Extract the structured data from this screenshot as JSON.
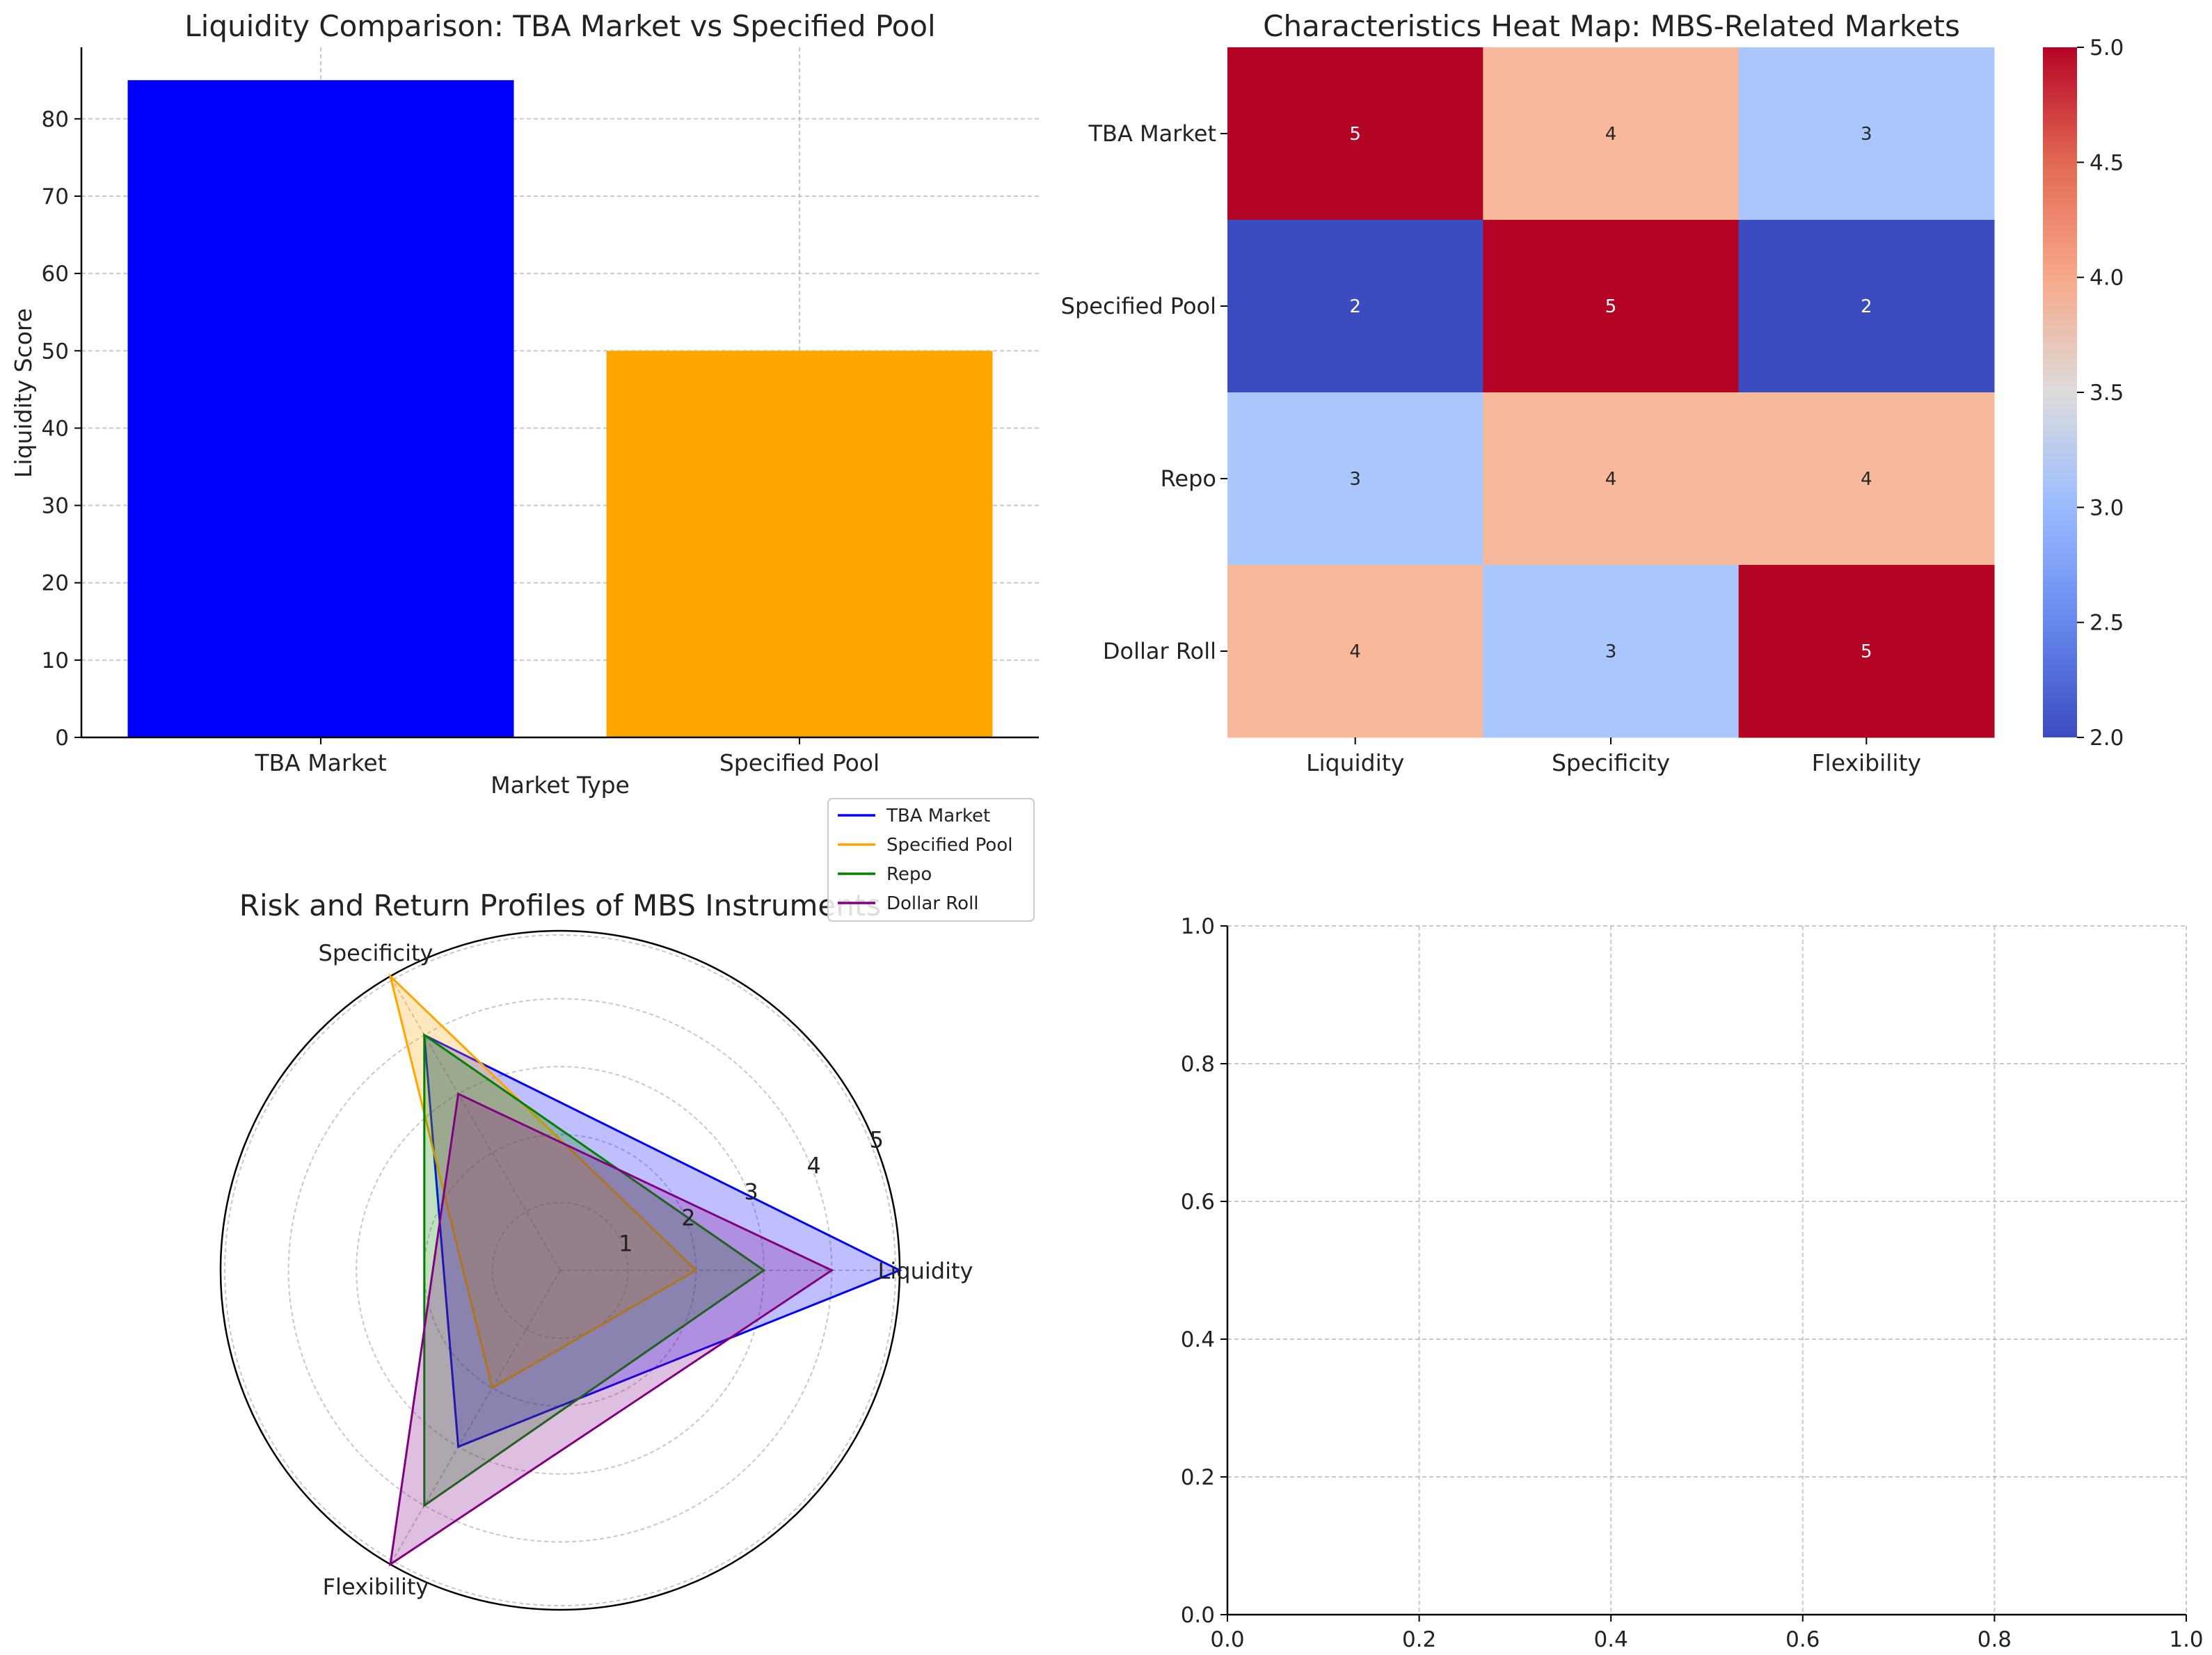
{
  "chart_data": [
    {
      "type": "bar",
      "title": "Liquidity Comparison: TBA Market vs Specified Pool",
      "xlabel": "Market Type",
      "ylabel": "Liquidity Score",
      "categories": [
        "TBA Market",
        "Specified Pool"
      ],
      "values": [
        85,
        50
      ],
      "colors": [
        "#0000ff",
        "#ffa500"
      ],
      "ylim": [
        0,
        89.25
      ],
      "yticks": [
        "0",
        "10",
        "20",
        "30",
        "40",
        "50",
        "60",
        "70",
        "80"
      ],
      "grid": true
    },
    {
      "type": "heatmap",
      "title": "Characteristics Heat Map: MBS-Related Markets",
      "rows": [
        "TBA Market",
        "Specified Pool",
        "Repo",
        "Dollar Roll"
      ],
      "columns": [
        "Liquidity",
        "Specificity",
        "Flexibility"
      ],
      "values": [
        [
          5,
          4,
          3
        ],
        [
          2,
          5,
          2
        ],
        [
          3,
          4,
          4
        ],
        [
          4,
          3,
          5
        ]
      ],
      "colormap": "coolwarm",
      "vmin": 2,
      "vmax": 5,
      "colorbar_ticks": [
        "2.0",
        "2.5",
        "3.0",
        "3.5",
        "4.0",
        "4.5",
        "5.0"
      ],
      "cell_colors": {
        "2": "#3b4cc0",
        "3": "#aac7fd",
        "4": "#f7b89c",
        "5": "#b40426"
      }
    },
    {
      "type": "radar",
      "title": "Risk and Return Profiles of MBS Instruments",
      "axes": [
        "Liquidity",
        "Specificity",
        "Flexibility"
      ],
      "rlim": [
        0,
        5
      ],
      "rticks": [
        "1",
        "2",
        "3",
        "4",
        "5"
      ],
      "legend_position": "upper-right",
      "series": [
        {
          "name": "TBA Market",
          "color": "#0000ff",
          "values": [
            5,
            4,
            3
          ]
        },
        {
          "name": "Specified Pool",
          "color": "#ffa500",
          "values": [
            2,
            5,
            2
          ]
        },
        {
          "name": "Repo",
          "color": "#008000",
          "values": [
            3,
            4,
            4
          ]
        },
        {
          "name": "Dollar Roll",
          "color": "#800080",
          "values": [
            4,
            3,
            5
          ]
        }
      ]
    },
    {
      "type": "empty",
      "xlim": [
        0,
        1
      ],
      "ylim": [
        0,
        1
      ],
      "xticks": [
        "0.0",
        "0.2",
        "0.4",
        "0.6",
        "0.8",
        "1.0"
      ],
      "yticks": [
        "0.0",
        "0.2",
        "0.4",
        "0.6",
        "0.8",
        "1.0"
      ],
      "grid": true
    }
  ]
}
